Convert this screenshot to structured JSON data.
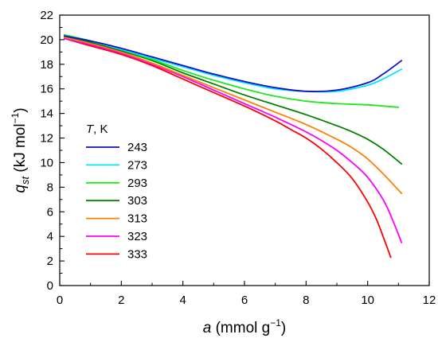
{
  "chart_data": {
    "type": "line",
    "xlabel": {
      "main": "a",
      "unit_pre": " (mmol g",
      "unit_sup": "−1",
      "unit_post": ")"
    },
    "ylabel": {
      "main": "q",
      "sub": "st",
      "unit_pre": " (kJ mol",
      "unit_sup": "−1",
      "unit_post": ")"
    },
    "xlim": [
      0,
      12
    ],
    "ylim": [
      0,
      22
    ],
    "xticks": [
      "0",
      "2",
      "4",
      "6",
      "8",
      "10",
      "12"
    ],
    "yticks": [
      "0",
      "2",
      "4",
      "6",
      "8",
      "10",
      "12",
      "14",
      "16",
      "18",
      "20",
      "22"
    ],
    "legend": {
      "title_var": "T",
      "title_unit": ", K",
      "position": "left"
    },
    "series": [
      {
        "name": "243",
        "color": "#1010c8",
        "x": [
          0.15,
          1,
          2,
          3,
          4,
          5,
          6,
          7,
          8,
          9,
          10,
          10.5,
          11.1
        ],
        "y": [
          20.3,
          19.9,
          19.3,
          18.6,
          17.9,
          17.2,
          16.6,
          16.1,
          15.8,
          15.9,
          16.5,
          17.2,
          18.3
        ]
      },
      {
        "name": "273",
        "color": "#00e6ff",
        "x": [
          0.15,
          1,
          2,
          3,
          4,
          5,
          6,
          7,
          8,
          9,
          10,
          10.5,
          11.1
        ],
        "y": [
          20.3,
          19.9,
          19.2,
          18.5,
          17.8,
          17.1,
          16.5,
          16.0,
          15.8,
          15.8,
          16.3,
          16.8,
          17.6
        ]
      },
      {
        "name": "293",
        "color": "#1ee81e",
        "x": [
          0.15,
          1,
          2,
          3,
          4,
          5,
          6,
          7,
          8,
          9,
          10,
          11
        ],
        "y": [
          20.4,
          19.9,
          19.2,
          18.4,
          17.5,
          16.7,
          16.0,
          15.4,
          15.0,
          14.8,
          14.7,
          14.5
        ]
      },
      {
        "name": "303",
        "color": "#008000",
        "x": [
          0.15,
          1,
          2,
          3,
          4,
          5,
          6,
          7,
          8,
          9,
          9.5,
          10,
          10.5,
          11.1
        ],
        "y": [
          20.3,
          19.8,
          19.1,
          18.3,
          17.3,
          16.4,
          15.5,
          14.7,
          13.9,
          13.0,
          12.5,
          11.9,
          11.1,
          9.9
        ]
      },
      {
        "name": "313",
        "color": "#ff8000",
        "x": [
          0.15,
          1,
          2,
          3,
          4,
          5,
          6,
          7,
          8,
          9,
          9.5,
          10,
          10.5,
          11.1
        ],
        "y": [
          20.2,
          19.7,
          19.0,
          18.1,
          17.1,
          16.1,
          15.1,
          14.1,
          13.1,
          11.9,
          11.2,
          10.3,
          9.1,
          7.5
        ]
      },
      {
        "name": "323",
        "color": "#ff00ff",
        "x": [
          0.15,
          1,
          2,
          3,
          4,
          5,
          6,
          7,
          8,
          8.5,
          9,
          9.5,
          10,
          10.5,
          10.8,
          11.1
        ],
        "y": [
          20.1,
          19.6,
          18.9,
          18.0,
          17.0,
          15.9,
          14.8,
          13.7,
          12.5,
          11.8,
          11.0,
          10.0,
          8.8,
          7.0,
          5.4,
          3.5
        ]
      },
      {
        "name": "333",
        "color": "#ff0000",
        "x": [
          0.15,
          1,
          2,
          3,
          4,
          5,
          6,
          7,
          7.5,
          8,
          8.5,
          9,
          9.5,
          10,
          10.3,
          10.5,
          10.75
        ],
        "y": [
          20.1,
          19.5,
          18.8,
          17.9,
          16.8,
          15.7,
          14.6,
          13.4,
          12.7,
          12.0,
          11.1,
          10.0,
          8.7,
          6.8,
          5.3,
          4.0,
          2.3
        ]
      }
    ]
  }
}
